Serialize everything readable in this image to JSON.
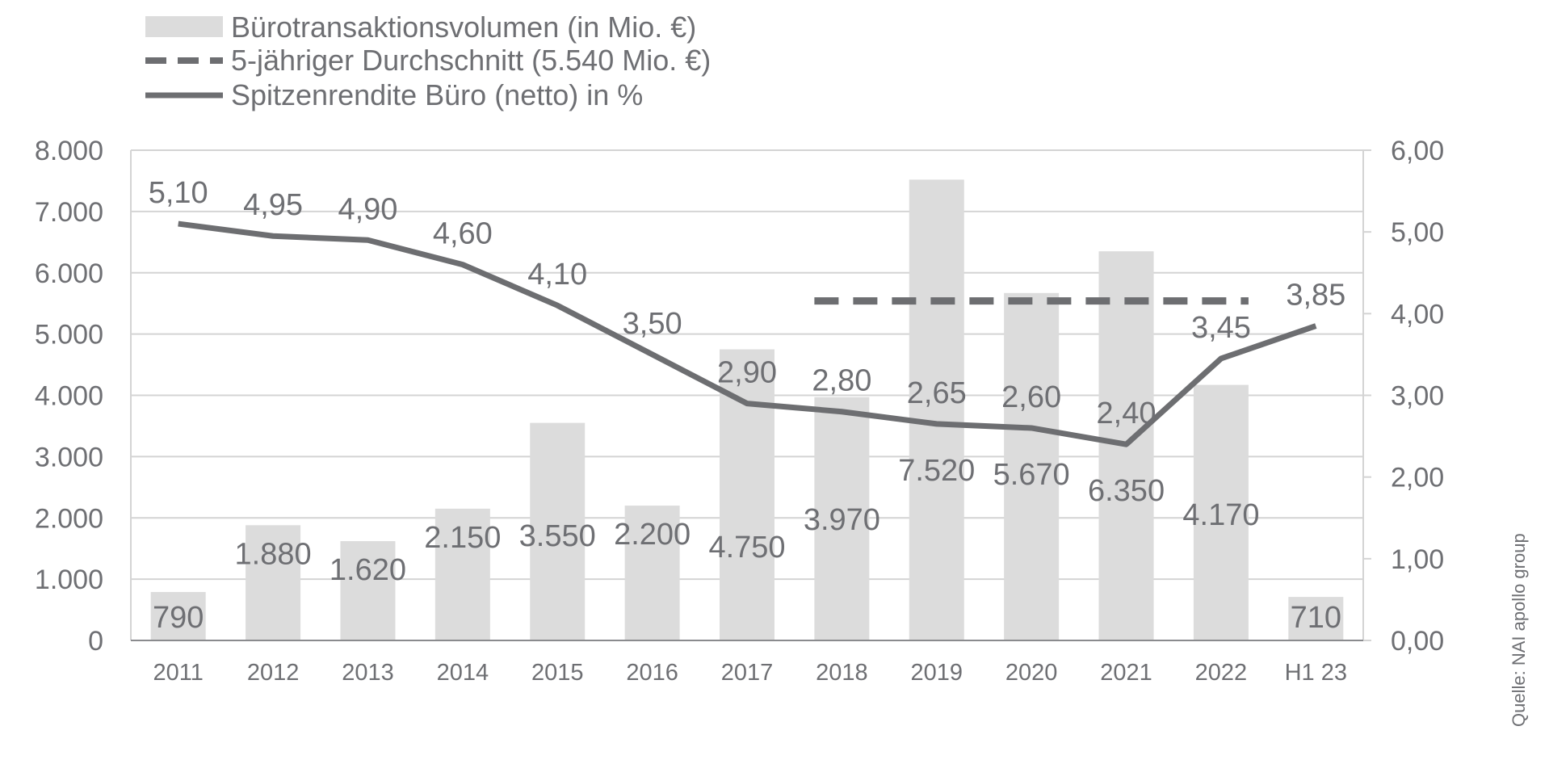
{
  "chart_data": {
    "type": "bar",
    "categories": [
      "2011",
      "2012",
      "2013",
      "2014",
      "2015",
      "2016",
      "2017",
      "2018",
      "2019",
      "2020",
      "2021",
      "2022",
      "H1 23"
    ],
    "series": [
      {
        "name": "Bürotransaktionsvolumen (in Mio. €)",
        "kind": "bar",
        "axis": "left",
        "values": [
          790,
          1880,
          1620,
          2150,
          3550,
          2200,
          4750,
          3970,
          7520,
          5670,
          6350,
          4170,
          710
        ],
        "labels": [
          "790",
          "1.880",
          "1.620",
          "2.150",
          "3.550",
          "2.200",
          "4.750",
          "3.970",
          "7.520",
          "5.670",
          "6.350",
          "4.170",
          "710"
        ]
      },
      {
        "name": "5-jähriger Durchschnitt (5.540 Mio. €)",
        "kind": "dashed-line",
        "axis": "left",
        "value": 5540,
        "from_category": "2018",
        "to_category": "2022"
      },
      {
        "name": "Spitzenrendite Büro (netto) in %",
        "kind": "line",
        "axis": "right",
        "values": [
          5.1,
          4.95,
          4.9,
          4.6,
          4.1,
          3.5,
          2.9,
          2.8,
          2.65,
          2.6,
          2.4,
          3.45,
          3.85
        ],
        "labels": [
          "5,10",
          "4,95",
          "4,90",
          "4,60",
          "4,10",
          "3,50",
          "2,90",
          "2,80",
          "2,65",
          "2,60",
          "2,40",
          "3,45",
          "3,85"
        ]
      }
    ],
    "y_left": {
      "min": 0,
      "max": 8000,
      "ticks": [
        "0",
        "1.000",
        "2.000",
        "3.000",
        "4.000",
        "5.000",
        "6.000",
        "7.000",
        "8.000"
      ]
    },
    "y_right": {
      "min": 0,
      "max": 6,
      "ticks": [
        "0,00",
        "1,00",
        "2,00",
        "3,00",
        "4,00",
        "5,00",
        "6,00"
      ]
    },
    "grid": true,
    "legend_position": "top-left"
  },
  "source": "Quelle: NAI apollo group",
  "colors": {
    "bar": "#dcdcdc",
    "line": "#6d6e71",
    "grid": "#d4d4d4",
    "text": "#6e6f73"
  }
}
